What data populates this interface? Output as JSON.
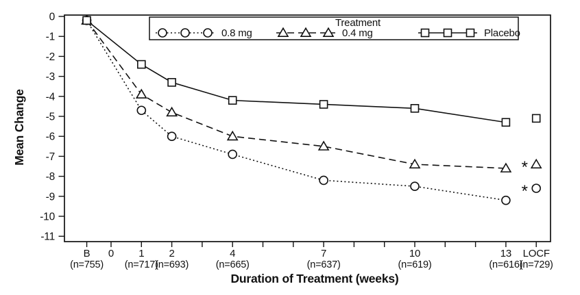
{
  "colors": {
    "ink": "#111111",
    "background": "#ffffff"
  },
  "chart_data": {
    "type": "line",
    "title": "",
    "legend_title": "Treatment",
    "xlabel": "Duration of Treatment (weeks)",
    "ylabel": "Mean Change",
    "ylim": [
      -11,
      0
    ],
    "yticks": [
      0,
      -1,
      -2,
      -3,
      -4,
      -5,
      -6,
      -7,
      -8,
      -9,
      -10,
      -11
    ],
    "grid": false,
    "legend_position": "top-inside",
    "x_ticks": [
      {
        "week": -0.8,
        "label": "B",
        "n": "(n=755)"
      },
      {
        "week": 0,
        "label": "0",
        "n": ""
      },
      {
        "week": 1,
        "label": "1",
        "n": "(n=717)"
      },
      {
        "week": 2,
        "label": "2",
        "n": "(n=693)"
      },
      {
        "week": 3,
        "label": "",
        "n": ""
      },
      {
        "week": 4,
        "label": "4",
        "n": "(n=665)"
      },
      {
        "week": 5,
        "label": "",
        "n": ""
      },
      {
        "week": 6,
        "label": "",
        "n": ""
      },
      {
        "week": 7,
        "label": "7",
        "n": "(n=637)"
      },
      {
        "week": 8,
        "label": "",
        "n": ""
      },
      {
        "week": 9,
        "label": "",
        "n": ""
      },
      {
        "week": 10,
        "label": "10",
        "n": "(n=619)"
      },
      {
        "week": 11,
        "label": "",
        "n": ""
      },
      {
        "week": 12,
        "label": "",
        "n": ""
      },
      {
        "week": 13,
        "label": "13",
        "n": "(n=616)"
      },
      {
        "week": 14,
        "label": "LOCF",
        "n": "(n=729)"
      }
    ],
    "series": [
      {
        "name": "0.8 mg",
        "marker": "circle",
        "line_style": "dotted",
        "weeks": [
          -0.8,
          1,
          2,
          4,
          7,
          10,
          13
        ],
        "values": [
          -0.2,
          -4.7,
          -6.0,
          -6.9,
          -8.2,
          -8.5,
          -9.2
        ],
        "locf": {
          "week": 14,
          "value": -8.6,
          "starred": true
        }
      },
      {
        "name": "0.4 mg",
        "marker": "triangle",
        "line_style": "dashed",
        "weeks": [
          -0.8,
          1,
          2,
          4,
          7,
          10,
          13
        ],
        "values": [
          -0.2,
          -3.9,
          -4.8,
          -6.0,
          -6.5,
          -7.4,
          -7.6
        ],
        "locf": {
          "week": 14,
          "value": -7.4,
          "starred": true
        }
      },
      {
        "name": "Placebo",
        "marker": "square",
        "line_style": "solid",
        "weeks": [
          -0.8,
          1,
          2,
          4,
          7,
          10,
          13
        ],
        "values": [
          -0.2,
          -2.4,
          -3.3,
          -4.2,
          -4.4,
          -4.6,
          -5.3
        ],
        "locf": {
          "week": 14,
          "value": -5.1,
          "starred": false
        }
      }
    ],
    "significance_marker": "*"
  }
}
